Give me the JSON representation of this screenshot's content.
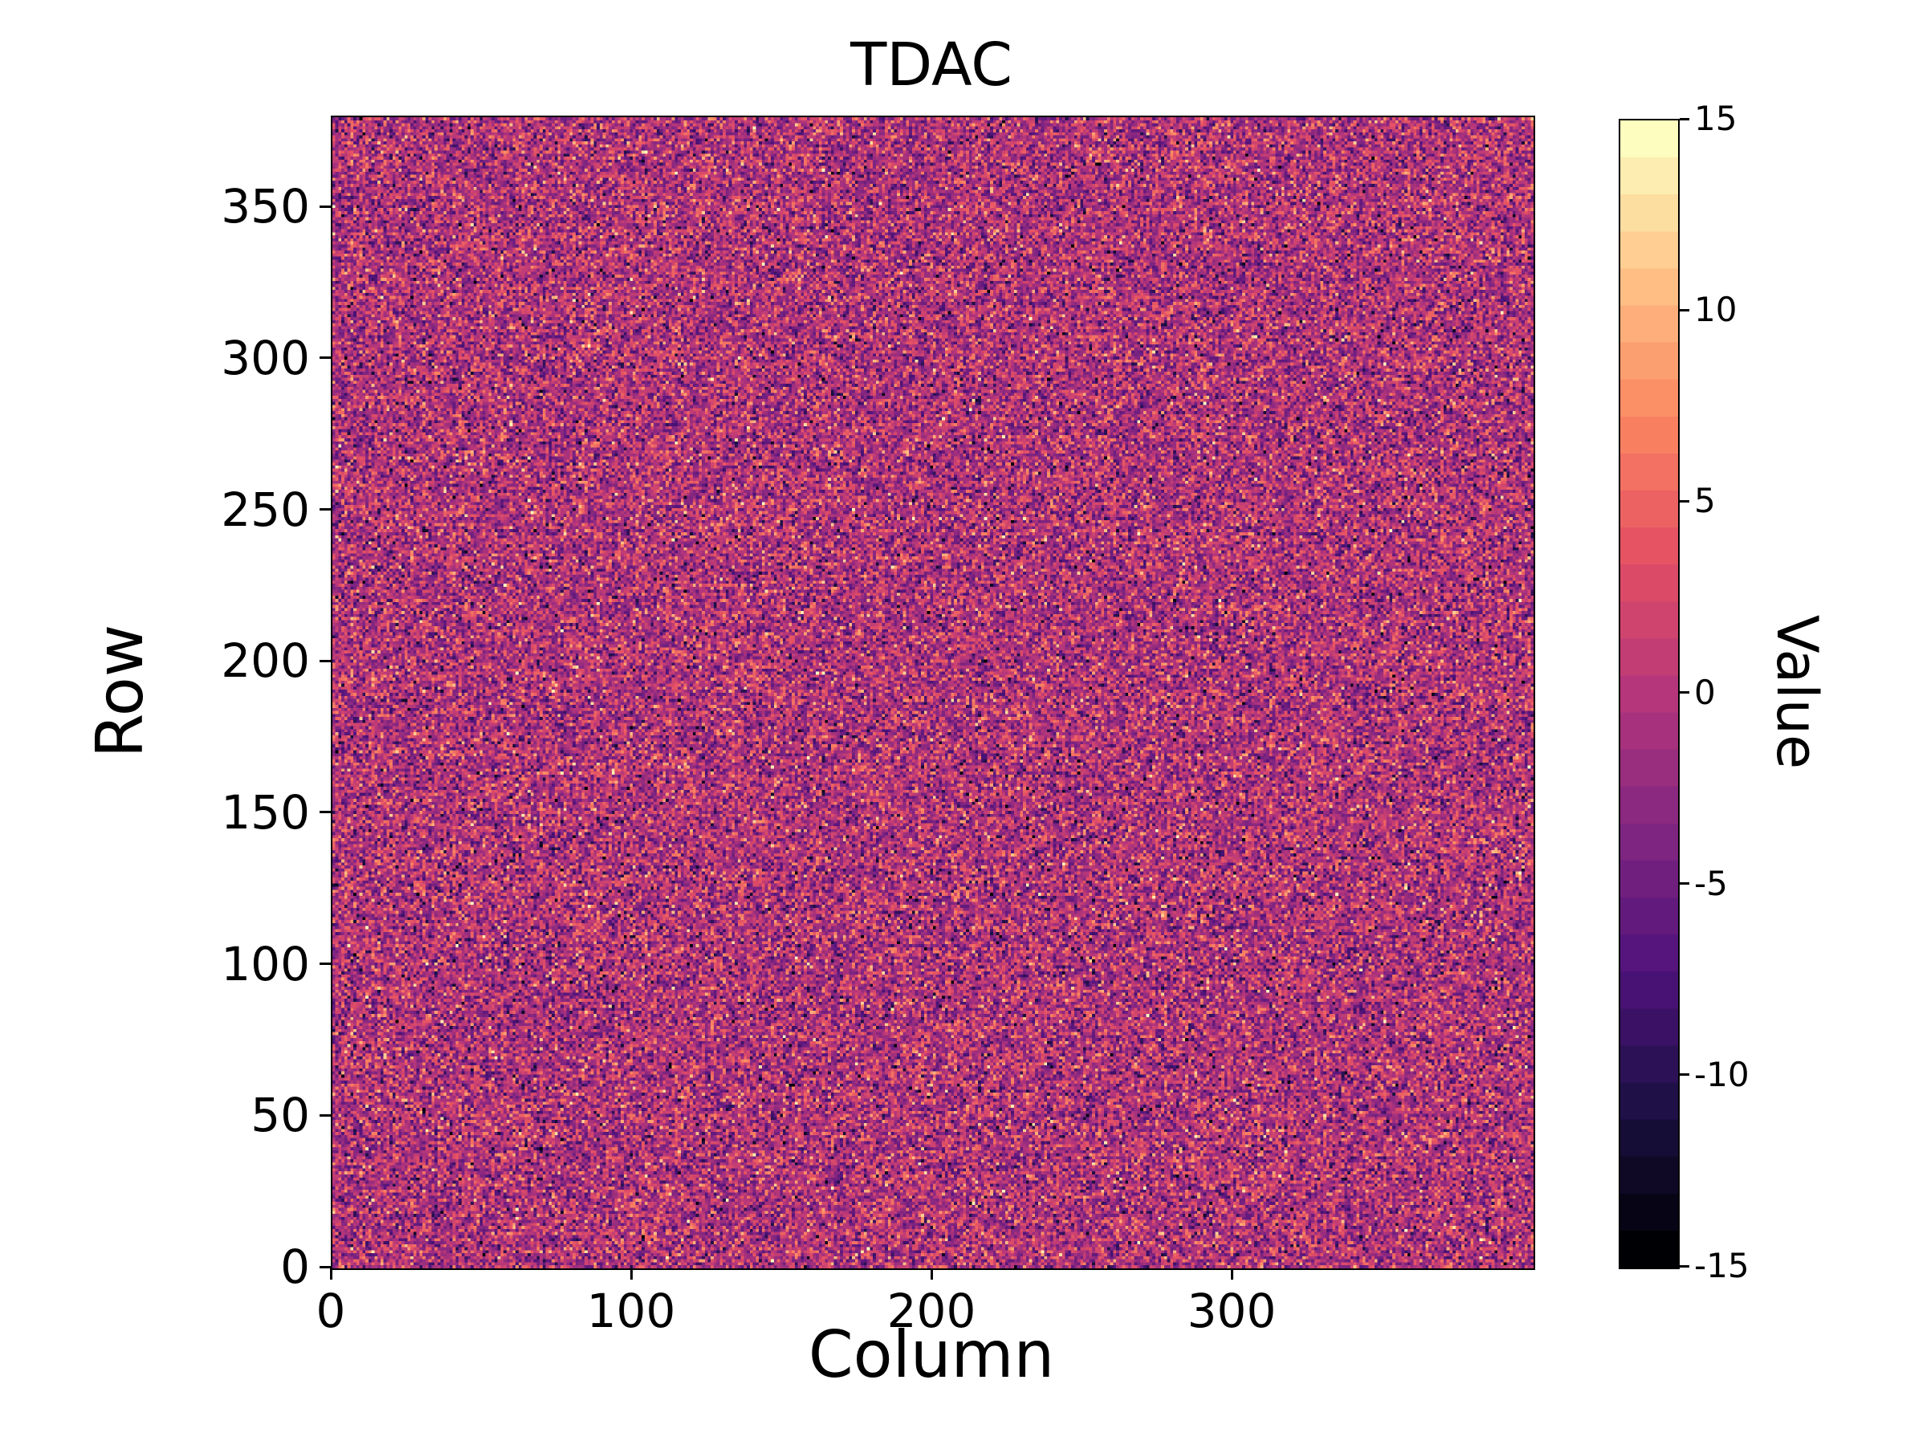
{
  "figure": {
    "title": "TDAC",
    "xlabel": "Column",
    "ylabel": "Row",
    "colorbar_label": "Value"
  },
  "chart_data": {
    "type": "heatmap",
    "title": "TDAC",
    "xlabel": "Column",
    "ylabel": "Row",
    "colorbar_label": "Value",
    "xlim": [
      0,
      400
    ],
    "ylim": [
      0,
      380
    ],
    "x_ticks": [
      0,
      100,
      200,
      300
    ],
    "y_ticks": [
      0,
      50,
      100,
      150,
      200,
      250,
      300,
      350
    ],
    "colorbar_ticks": [
      15,
      10,
      5,
      0,
      -5,
      -10,
      -15
    ],
    "vmin": -15,
    "vmax": 15,
    "levels": 31,
    "colormap": "magma",
    "grid": {
      "cols": 400,
      "rows": 380
    },
    "distribution": {
      "type": "gaussian-integer-noise",
      "mean": -0.5,
      "std": 4.5,
      "clip": [
        -15,
        15
      ],
      "seed": 42
    },
    "legend": "none",
    "grid_lines": false,
    "background": "#ffffff"
  }
}
